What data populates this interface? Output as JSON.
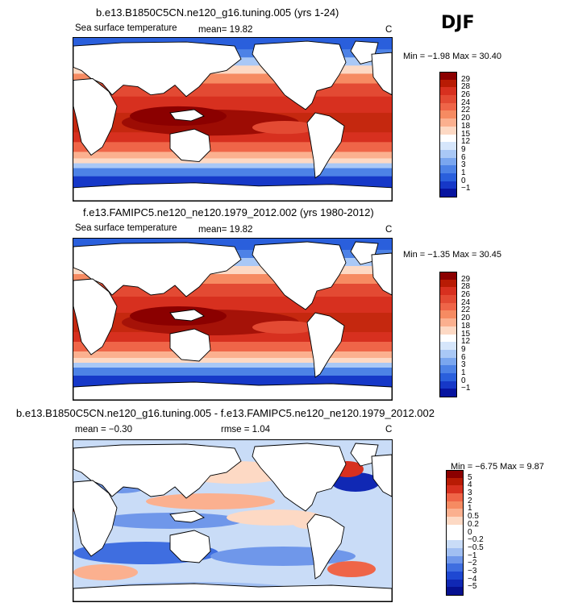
{
  "season": "DJF",
  "panels": [
    {
      "title": "b.e13.B1850C5CN.ne120_g16.tuning.005 (yrs 1-24)",
      "variable": "Sea surface temperature",
      "mean_text": "mean=   19.82",
      "units": "C",
      "minmax_text": "Min =  −1.98  Max =  30.40",
      "colorbar_labels": [
        "29",
        "28",
        "26",
        "24",
        "22",
        "20",
        "18",
        "15",
        "12",
        "9",
        "6",
        "3",
        "1",
        "0",
        "−1"
      ],
      "colorbar_colors": [
        "#8b0000",
        "#b81b04",
        "#d7301f",
        "#e34a33",
        "#ef6548",
        "#f68b62",
        "#fbb08f",
        "#fdd9c4",
        "#ffffff",
        "#d6e6fb",
        "#a9c8f6",
        "#7aa6ef",
        "#4d82e6",
        "#2a5fdc",
        "#1638c8",
        "#07149f"
      ],
      "map_type": "sst"
    },
    {
      "title": "f.e13.FAMIPC5.ne120_ne120.1979_2012.002 (yrs 1980-2012)",
      "variable": "Sea surface temperature",
      "mean_text": "mean=   19.82",
      "units": "C",
      "minmax_text": "Min =  −1.35  Max =  30.45",
      "colorbar_labels": [
        "29",
        "28",
        "26",
        "24",
        "22",
        "20",
        "18",
        "15",
        "12",
        "9",
        "6",
        "3",
        "1",
        "0",
        "−1"
      ],
      "colorbar_colors": [
        "#8b0000",
        "#b81b04",
        "#d7301f",
        "#e34a33",
        "#ef6548",
        "#f68b62",
        "#fbb08f",
        "#fdd9c4",
        "#ffffff",
        "#d6e6fb",
        "#a9c8f6",
        "#7aa6ef",
        "#4d82e6",
        "#2a5fdc",
        "#1638c8",
        "#07149f"
      ],
      "map_type": "sst"
    },
    {
      "title": "b.e13.B1850C5CN.ne120_g16.tuning.005 - f.e13.FAMIPC5.ne120_ne120.1979_2012.002",
      "mean_text": "mean =  −0.30",
      "rmse_text": "rmse =    1.04",
      "units": "C",
      "minmax_text": "Min =  −6.75  Max =   9.87",
      "colorbar_labels": [
        "5",
        "4",
        "3",
        "2",
        "1",
        "0.5",
        "0.2",
        "0",
        "−0.2",
        "−0.5",
        "−1",
        "−2",
        "−3",
        "−4",
        "−5"
      ],
      "colorbar_colors": [
        "#8b0000",
        "#b81b04",
        "#d7301f",
        "#ef6548",
        "#f68b62",
        "#fbb08f",
        "#fdd9c4",
        "#ffffff",
        "#ffffff",
        "#c9dcf7",
        "#a1bff2",
        "#6f97ea",
        "#3f6ee0",
        "#1e48d2",
        "#1028b4",
        "#061190"
      ],
      "map_type": "diff"
    }
  ]
}
